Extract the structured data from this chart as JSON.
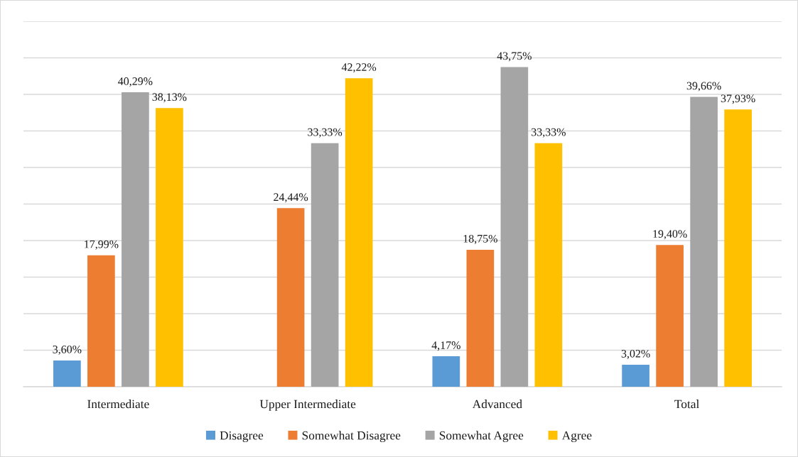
{
  "chart_data": {
    "type": "bar",
    "categories": [
      "Intermediate",
      "Upper Intermediate",
      "Advanced",
      "Total"
    ],
    "series": [
      {
        "name": "Disagree",
        "color": "#5b9bd5",
        "values": [
          3.6,
          null,
          4.17,
          3.02
        ],
        "value_labels": [
          "3,60%",
          null,
          "4,17%",
          "3,02%"
        ]
      },
      {
        "name": "Somewhat Disagree",
        "color": "#ed7d31",
        "values": [
          17.99,
          24.44,
          18.75,
          19.4
        ],
        "value_labels": [
          "17,99%",
          "24,44%",
          "18,75%",
          "19,40%"
        ]
      },
      {
        "name": "Somewhat Agree",
        "color": "#a5a5a5",
        "values": [
          40.29,
          33.33,
          43.75,
          39.66
        ],
        "value_labels": [
          "40,29%",
          "33,33%",
          "43,75%",
          "39,66%"
        ]
      },
      {
        "name": "Agree",
        "color": "#ffc000",
        "values": [
          38.13,
          42.22,
          33.33,
          37.93
        ],
        "value_labels": [
          "38,13%",
          "42,22%",
          "33,33%",
          "37,93%"
        ]
      }
    ],
    "ylim": [
      0,
      50
    ],
    "yticks": [
      {
        "value": 0,
        "label": null
      },
      {
        "value": 5,
        "label": null
      },
      {
        "value": 10,
        "label": null
      },
      {
        "value": 15,
        "label": null
      },
      {
        "value": 20,
        "label": null
      },
      {
        "value": 25,
        "label": null
      },
      {
        "value": 30,
        "label": null
      },
      {
        "value": 35,
        "label": null
      },
      {
        "value": 40,
        "label": null
      },
      {
        "value": 45,
        "label": null
      },
      {
        "value": 50,
        "label": null
      }
    ],
    "tick_labels": "x",
    "grid": "y",
    "legend": "bottom"
  }
}
